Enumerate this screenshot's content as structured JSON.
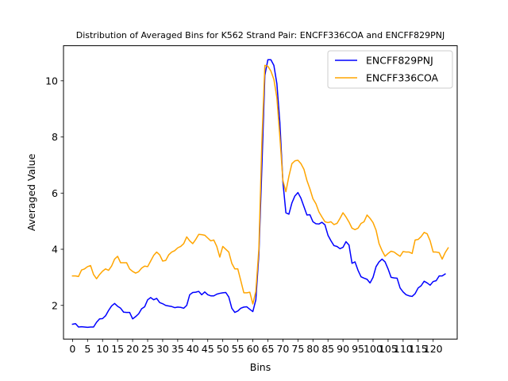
{
  "chart_data": {
    "type": "line",
    "title": "Distribution of Averaged Bins for K562 Strand Pair: ENCFF336COA and ENCFF829PNJ",
    "xlabel": "Bins",
    "ylabel": "Averaged Value",
    "xlim": [
      -3,
      128
    ],
    "ylim": [
      0.8,
      11.25
    ],
    "xticks": [
      0,
      5,
      10,
      15,
      20,
      25,
      30,
      35,
      40,
      45,
      50,
      55,
      60,
      65,
      70,
      75,
      80,
      85,
      90,
      95,
      100,
      105,
      110,
      115,
      120
    ],
    "yticks": [
      2,
      4,
      6,
      8,
      10
    ],
    "grid": false,
    "legend_position": "top-right",
    "series": [
      {
        "name": "ENCFF829PNJ",
        "color": "#0000ff",
        "points": [
          [
            0,
            1.33
          ],
          [
            1,
            1.35
          ],
          [
            2,
            1.23
          ],
          [
            3,
            1.24
          ],
          [
            4,
            1.23
          ],
          [
            5,
            1.22
          ],
          [
            6,
            1.23
          ],
          [
            7,
            1.23
          ],
          [
            8,
            1.4
          ],
          [
            9,
            1.52
          ],
          [
            10,
            1.53
          ],
          [
            11,
            1.63
          ],
          [
            12,
            1.82
          ],
          [
            13,
            1.98
          ],
          [
            14,
            2.07
          ],
          [
            15,
            1.97
          ],
          [
            16,
            1.9
          ],
          [
            17,
            1.76
          ],
          [
            18,
            1.75
          ],
          [
            19,
            1.75
          ],
          [
            20,
            1.52
          ],
          [
            21,
            1.6
          ],
          [
            22,
            1.7
          ],
          [
            23,
            1.88
          ],
          [
            24,
            1.95
          ],
          [
            25,
            2.2
          ],
          [
            26,
            2.28
          ],
          [
            27,
            2.2
          ],
          [
            28,
            2.25
          ],
          [
            29,
            2.1
          ],
          [
            30,
            2.06
          ],
          [
            31,
            2.0
          ],
          [
            32,
            1.98
          ],
          [
            33,
            1.96
          ],
          [
            34,
            1.92
          ],
          [
            35,
            1.94
          ],
          [
            36,
            1.93
          ],
          [
            37,
            1.9
          ],
          [
            38,
            2.0
          ],
          [
            39,
            2.38
          ],
          [
            40,
            2.46
          ],
          [
            41,
            2.47
          ],
          [
            42,
            2.5
          ],
          [
            43,
            2.38
          ],
          [
            44,
            2.48
          ],
          [
            45,
            2.38
          ],
          [
            46,
            2.34
          ],
          [
            47,
            2.34
          ],
          [
            48,
            2.4
          ],
          [
            49,
            2.43
          ],
          [
            50,
            2.45
          ],
          [
            51,
            2.46
          ],
          [
            52,
            2.3
          ],
          [
            53,
            1.9
          ],
          [
            54,
            1.75
          ],
          [
            55,
            1.8
          ],
          [
            56,
            1.9
          ],
          [
            57,
            1.94
          ],
          [
            58,
            1.95
          ],
          [
            59,
            1.86
          ],
          [
            60,
            1.78
          ],
          [
            61,
            2.2
          ],
          [
            62,
            3.8
          ],
          [
            63,
            6.9
          ],
          [
            64,
            10.2
          ],
          [
            65,
            10.75
          ],
          [
            66,
            10.75
          ],
          [
            67,
            10.55
          ],
          [
            68,
            9.9
          ],
          [
            69,
            8.5
          ],
          [
            70,
            6.4
          ],
          [
            71,
            5.3
          ],
          [
            72,
            5.25
          ],
          [
            73,
            5.65
          ],
          [
            74,
            5.9
          ],
          [
            75,
            6.02
          ],
          [
            76,
            5.82
          ],
          [
            77,
            5.52
          ],
          [
            78,
            5.22
          ],
          [
            79,
            5.23
          ],
          [
            80,
            4.98
          ],
          [
            81,
            4.91
          ],
          [
            82,
            4.9
          ],
          [
            83,
            4.96
          ],
          [
            84,
            4.87
          ],
          [
            85,
            4.5
          ],
          [
            86,
            4.3
          ],
          [
            87,
            4.13
          ],
          [
            88,
            4.1
          ],
          [
            89,
            4.02
          ],
          [
            90,
            4.07
          ],
          [
            91,
            4.27
          ],
          [
            92,
            4.15
          ],
          [
            93,
            3.5
          ],
          [
            94,
            3.55
          ],
          [
            95,
            3.25
          ],
          [
            96,
            3.02
          ],
          [
            97,
            2.97
          ],
          [
            98,
            2.93
          ],
          [
            99,
            2.8
          ],
          [
            100,
            3.0
          ],
          [
            101,
            3.38
          ],
          [
            102,
            3.55
          ],
          [
            103,
            3.65
          ],
          [
            104,
            3.55
          ],
          [
            105,
            3.3
          ],
          [
            106,
            3.0
          ],
          [
            107,
            2.98
          ],
          [
            108,
            2.97
          ],
          [
            109,
            2.62
          ],
          [
            110,
            2.48
          ],
          [
            111,
            2.38
          ],
          [
            112,
            2.34
          ],
          [
            113,
            2.32
          ],
          [
            114,
            2.42
          ],
          [
            115,
            2.62
          ],
          [
            116,
            2.7
          ],
          [
            117,
            2.86
          ],
          [
            118,
            2.8
          ],
          [
            119,
            2.72
          ],
          [
            120,
            2.85
          ],
          [
            121,
            2.88
          ],
          [
            122,
            3.05
          ],
          [
            123,
            3.05
          ],
          [
            124,
            3.12
          ]
        ]
      },
      {
        "name": "ENCFF336COA",
        "color": "#ffa500",
        "points": [
          [
            0,
            3.05
          ],
          [
            1,
            3.05
          ],
          [
            2,
            3.03
          ],
          [
            3,
            3.26
          ],
          [
            4,
            3.3
          ],
          [
            5,
            3.38
          ],
          [
            6,
            3.42
          ],
          [
            7,
            3.1
          ],
          [
            8,
            2.95
          ],
          [
            9,
            3.1
          ],
          [
            10,
            3.22
          ],
          [
            11,
            3.3
          ],
          [
            12,
            3.25
          ],
          [
            13,
            3.4
          ],
          [
            14,
            3.65
          ],
          [
            15,
            3.75
          ],
          [
            16,
            3.52
          ],
          [
            17,
            3.52
          ],
          [
            18,
            3.52
          ],
          [
            19,
            3.3
          ],
          [
            20,
            3.21
          ],
          [
            21,
            3.15
          ],
          [
            22,
            3.2
          ],
          [
            23,
            3.33
          ],
          [
            24,
            3.4
          ],
          [
            25,
            3.38
          ],
          [
            26,
            3.58
          ],
          [
            27,
            3.78
          ],
          [
            28,
            3.9
          ],
          [
            29,
            3.8
          ],
          [
            30,
            3.58
          ],
          [
            31,
            3.6
          ],
          [
            32,
            3.8
          ],
          [
            33,
            3.9
          ],
          [
            34,
            3.95
          ],
          [
            35,
            4.05
          ],
          [
            36,
            4.1
          ],
          [
            37,
            4.2
          ],
          [
            38,
            4.44
          ],
          [
            39,
            4.3
          ],
          [
            40,
            4.2
          ],
          [
            41,
            4.35
          ],
          [
            42,
            4.53
          ],
          [
            43,
            4.52
          ],
          [
            44,
            4.5
          ],
          [
            45,
            4.4
          ],
          [
            46,
            4.3
          ],
          [
            47,
            4.33
          ],
          [
            48,
            4.1
          ],
          [
            49,
            3.72
          ],
          [
            50,
            4.1
          ],
          [
            51,
            4.0
          ],
          [
            52,
            3.9
          ],
          [
            53,
            3.5
          ],
          [
            54,
            3.3
          ],
          [
            55,
            3.3
          ],
          [
            56,
            2.88
          ],
          [
            57,
            2.45
          ],
          [
            58,
            2.45
          ],
          [
            59,
            2.47
          ],
          [
            60,
            2.05
          ],
          [
            61,
            2.5
          ],
          [
            62,
            4.0
          ],
          [
            63,
            7.8
          ],
          [
            64,
            10.55
          ],
          [
            65,
            10.52
          ],
          [
            66,
            10.35
          ],
          [
            67,
            10.05
          ],
          [
            68,
            9.4
          ],
          [
            69,
            8.0
          ],
          [
            70,
            6.45
          ],
          [
            71,
            6.05
          ],
          [
            72,
            6.6
          ],
          [
            73,
            7.05
          ],
          [
            74,
            7.15
          ],
          [
            75,
            7.17
          ],
          [
            76,
            7.05
          ],
          [
            77,
            6.85
          ],
          [
            78,
            6.45
          ],
          [
            79,
            6.15
          ],
          [
            80,
            5.8
          ],
          [
            81,
            5.62
          ],
          [
            82,
            5.33
          ],
          [
            83,
            5.15
          ],
          [
            84,
            4.98
          ],
          [
            85,
            4.95
          ],
          [
            86,
            4.98
          ],
          [
            87,
            4.88
          ],
          [
            88,
            4.92
          ],
          [
            89,
            5.1
          ],
          [
            90,
            5.3
          ],
          [
            91,
            5.15
          ],
          [
            92,
            4.97
          ],
          [
            93,
            4.75
          ],
          [
            94,
            4.7
          ],
          [
            95,
            4.75
          ],
          [
            96,
            4.92
          ],
          [
            97,
            4.98
          ],
          [
            98,
            5.22
          ],
          [
            99,
            5.1
          ],
          [
            100,
            4.95
          ],
          [
            101,
            4.68
          ],
          [
            102,
            4.2
          ],
          [
            103,
            3.95
          ],
          [
            104,
            3.75
          ],
          [
            105,
            3.85
          ],
          [
            106,
            3.93
          ],
          [
            107,
            3.9
          ],
          [
            108,
            3.82
          ],
          [
            109,
            3.75
          ],
          [
            110,
            3.92
          ],
          [
            111,
            3.9
          ],
          [
            112,
            3.9
          ],
          [
            113,
            3.85
          ],
          [
            114,
            4.33
          ],
          [
            115,
            4.35
          ],
          [
            116,
            4.45
          ],
          [
            117,
            4.6
          ],
          [
            118,
            4.55
          ],
          [
            119,
            4.3
          ],
          [
            120,
            3.9
          ],
          [
            121,
            3.9
          ],
          [
            122,
            3.88
          ],
          [
            123,
            3.65
          ],
          [
            124,
            3.88
          ],
          [
            125,
            4.05
          ]
        ]
      }
    ]
  }
}
